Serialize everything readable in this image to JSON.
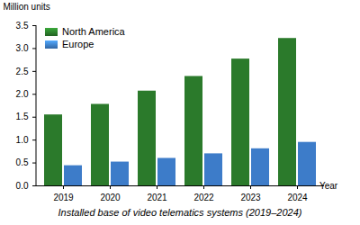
{
  "chart_data": {
    "type": "bar",
    "caption": "Installed base of video telematics systems (2019–2024)",
    "x_label": "Year",
    "y_label": "Million units",
    "categories": [
      "2019",
      "2020",
      "2021",
      "2022",
      "2023",
      "2024"
    ],
    "series": [
      {
        "name": "North America",
        "color": "#2b7a2b",
        "values": [
          1.55,
          1.78,
          2.07,
          2.39,
          2.77,
          3.22
        ]
      },
      {
        "name": "Europe",
        "color": "#3d7cc9",
        "values": [
          0.44,
          0.52,
          0.6,
          0.7,
          0.81,
          0.95
        ]
      }
    ],
    "ylim": [
      0,
      3.5
    ],
    "yticks": [
      {
        "value": 0,
        "label": "0.0"
      },
      0.5,
      {
        "value": 1,
        "label": "1.0"
      },
      1.5,
      {
        "value": 2,
        "label": "2.0"
      },
      2.5,
      {
        "value": 3,
        "label": "3.0"
      },
      3.5
    ],
    "grid": false,
    "legend": "top-left"
  }
}
